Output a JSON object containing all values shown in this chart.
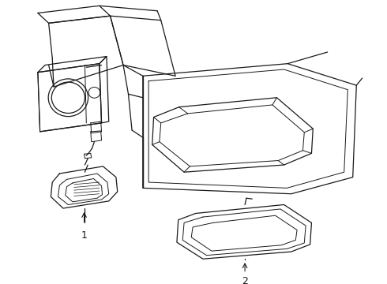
{
  "bg_color": "#ffffff",
  "line_color": "#1a1a1a",
  "label1": "1",
  "label2": "2",
  "figsize": [
    4.9,
    3.6
  ],
  "dpi": 100
}
